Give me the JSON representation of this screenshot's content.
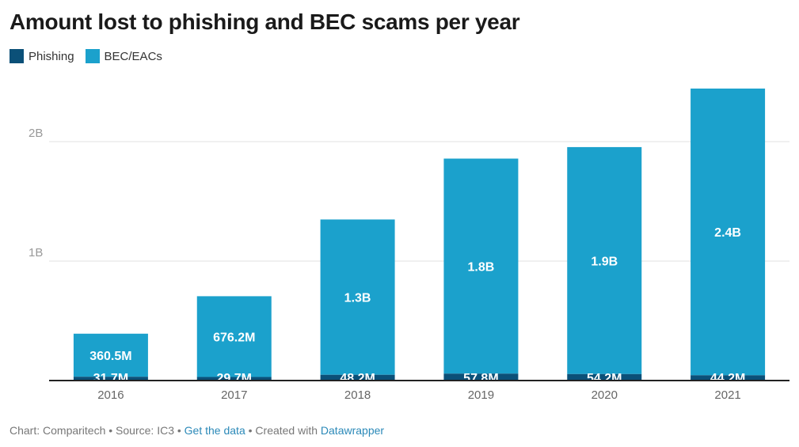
{
  "chart_data": {
    "type": "bar",
    "stacked": true,
    "title": "Amount lost to phishing and BEC scams per year",
    "categories": [
      "2016",
      "2017",
      "2018",
      "2019",
      "2020",
      "2021"
    ],
    "series": [
      {
        "name": "Phishing",
        "color": "#0b5078",
        "values": [
          31700000,
          29700000,
          48200000,
          57800000,
          54200000,
          44200000
        ],
        "labels": [
          "31.7M",
          "29.7M",
          "48.2M",
          "57.8M",
          "54.2M",
          "44.2M"
        ]
      },
      {
        "name": "BEC/EACs",
        "color": "#1ba1cc",
        "values": [
          360500000,
          676200000,
          1300000000,
          1800000000,
          1900000000,
          2400000000
        ],
        "labels": [
          "360.5M",
          "676.2M",
          "1.3B",
          "1.8B",
          "1.9B",
          "2.4B"
        ]
      }
    ],
    "y_ticks": [
      {
        "value": 1000000000,
        "label": "1B"
      },
      {
        "value": 2000000000,
        "label": "2B"
      }
    ],
    "ylim": [
      0,
      2500000000
    ],
    "grid": true,
    "legend_position": "top-left"
  },
  "footer": {
    "prefix": "Chart: Comparitech • Source: IC3 • ",
    "get_data": "Get the data",
    "middle": " • Created with ",
    "tool": "Datawrapper"
  }
}
